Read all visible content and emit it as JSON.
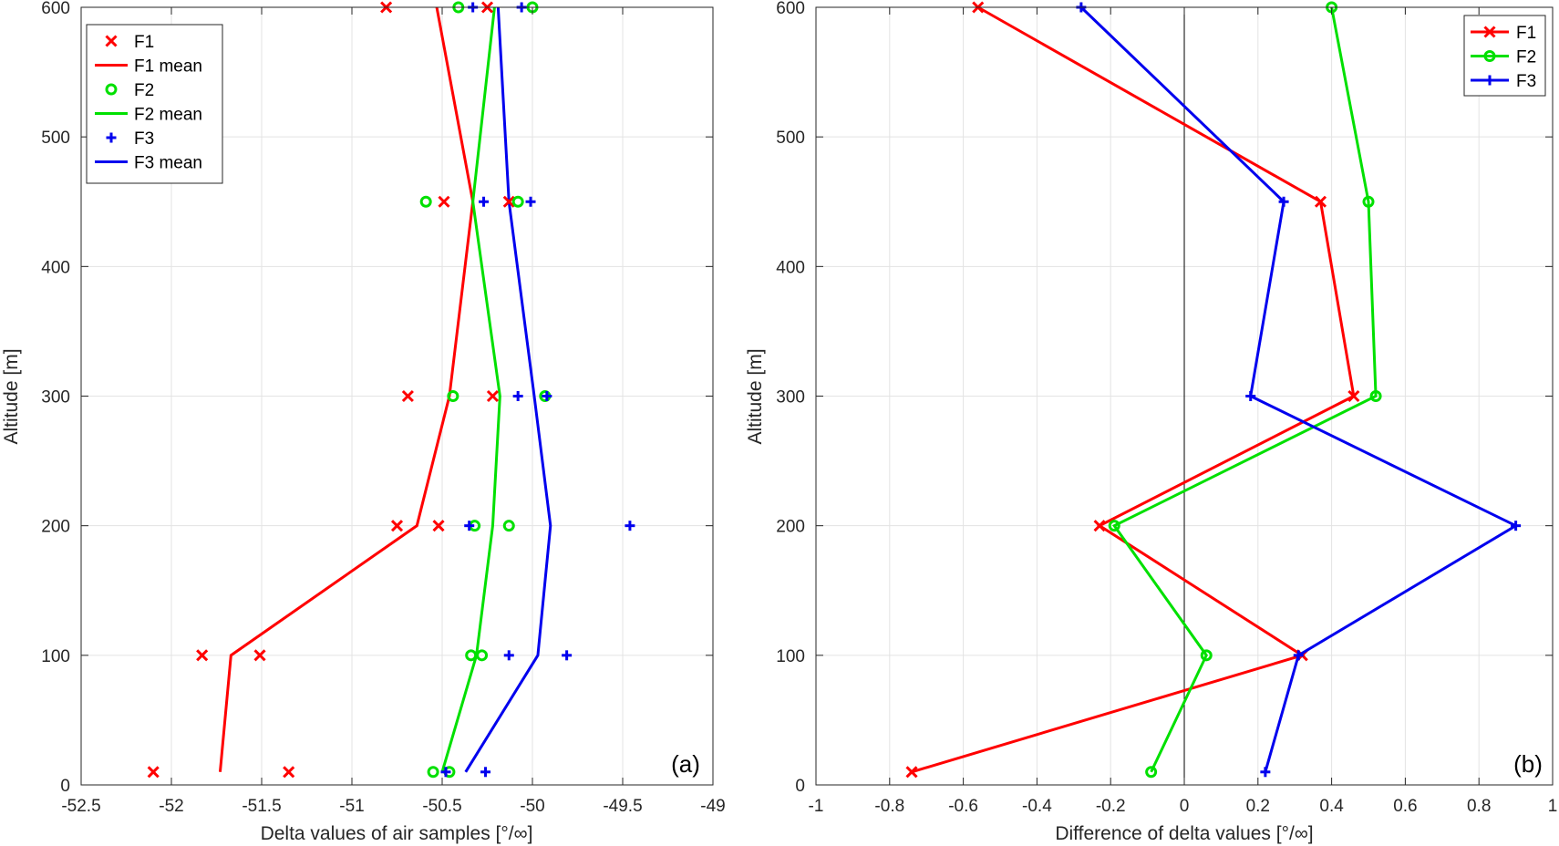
{
  "chart_data": [
    {
      "type": "scatter",
      "panel_label": "(a)",
      "xlabel": "Delta values of air samples [°/∞]",
      "ylabel": "Altitude [m]",
      "xlim": [
        -52.5,
        -49
      ],
      "ylim": [
        0,
        600
      ],
      "xticks": [
        "-52.5",
        "-52",
        "-51.5",
        "-51",
        "-50.5",
        "-50",
        "-49.5",
        "-49"
      ],
      "yticks": [
        "0",
        "100",
        "200",
        "300",
        "400",
        "500",
        "600"
      ],
      "grid": true,
      "legend_position": "top-left",
      "legend": [
        "F1",
        "F1 mean",
        "F2",
        "F2 mean",
        "F3",
        "F3 mean"
      ],
      "colors": {
        "F1": "#ff0000",
        "F2": "#00e000",
        "F3": "#0000ee"
      },
      "series": [
        {
          "name": "F1",
          "kind": "scatter",
          "marker": "x",
          "color": "#ff0000",
          "points": [
            [
              -52.1,
              10
            ],
            [
              -51.35,
              10
            ],
            [
              -51.83,
              100
            ],
            [
              -51.51,
              100
            ],
            [
              -50.75,
              200
            ],
            [
              -50.52,
              200
            ],
            [
              -50.69,
              300
            ],
            [
              -50.22,
              300
            ],
            [
              -50.49,
              450
            ],
            [
              -50.13,
              450
            ],
            [
              -50.81,
              600
            ],
            [
              -50.25,
              600
            ]
          ]
        },
        {
          "name": "F1 mean",
          "kind": "line",
          "color": "#ff0000",
          "points": [
            [
              -51.73,
              10
            ],
            [
              -51.67,
              100
            ],
            [
              -50.64,
              200
            ],
            [
              -50.46,
              300
            ],
            [
              -50.33,
              450
            ],
            [
              -50.53,
              600
            ]
          ]
        },
        {
          "name": "F2",
          "kind": "scatter",
          "marker": "o",
          "color": "#00e000",
          "points": [
            [
              -50.55,
              10
            ],
            [
              -50.46,
              10
            ],
            [
              -50.34,
              100
            ],
            [
              -50.28,
              100
            ],
            [
              -50.32,
              200
            ],
            [
              -50.13,
              200
            ],
            [
              -50.44,
              300
            ],
            [
              -49.93,
              300
            ],
            [
              -50.59,
              450
            ],
            [
              -50.08,
              450
            ],
            [
              -50.41,
              600
            ],
            [
              -50.0,
              600
            ]
          ]
        },
        {
          "name": "F2 mean",
          "kind": "line",
          "color": "#00e000",
          "points": [
            [
              -50.5,
              10
            ],
            [
              -50.31,
              100
            ],
            [
              -50.22,
              200
            ],
            [
              -50.18,
              300
            ],
            [
              -50.33,
              450
            ],
            [
              -50.21,
              600
            ]
          ]
        },
        {
          "name": "F3",
          "kind": "scatter",
          "marker": "+",
          "color": "#0000ee",
          "points": [
            [
              -50.48,
              10
            ],
            [
              -50.26,
              10
            ],
            [
              -50.13,
              100
            ],
            [
              -49.81,
              100
            ],
            [
              -50.35,
              200
            ],
            [
              -49.46,
              200
            ],
            [
              -50.08,
              300
            ],
            [
              -49.92,
              300
            ],
            [
              -50.27,
              450
            ],
            [
              -50.01,
              450
            ],
            [
              -50.33,
              600
            ],
            [
              -50.06,
              600
            ]
          ]
        },
        {
          "name": "F3 mean",
          "kind": "line",
          "color": "#0000ee",
          "points": [
            [
              -50.37,
              10
            ],
            [
              -49.97,
              100
            ],
            [
              -49.9,
              200
            ],
            [
              -49.99,
              300
            ],
            [
              -50.13,
              450
            ],
            [
              -50.19,
              600
            ]
          ]
        }
      ]
    },
    {
      "type": "line",
      "panel_label": "(b)",
      "xlabel": "Difference of delta values [°/∞]",
      "ylabel": "Altitude [m]",
      "xlim": [
        -1,
        1
      ],
      "ylim": [
        0,
        600
      ],
      "xticks": [
        "-1",
        "-0.8",
        "-0.6",
        "-0.4",
        "-0.2",
        "0",
        "0.2",
        "0.4",
        "0.6",
        "0.8",
        "1"
      ],
      "yticks": [
        "0",
        "100",
        "200",
        "300",
        "400",
        "500",
        "600"
      ],
      "grid": true,
      "zero_line": true,
      "legend_position": "top-right",
      "legend": [
        "F1",
        "F2",
        "F3"
      ],
      "series": [
        {
          "name": "F1",
          "marker": "x",
          "color": "#ff0000",
          "points": [
            [
              -0.74,
              10
            ],
            [
              0.32,
              100
            ],
            [
              -0.23,
              200
            ],
            [
              0.46,
              300
            ],
            [
              0.37,
              450
            ],
            [
              -0.56,
              600
            ]
          ]
        },
        {
          "name": "F2",
          "marker": "o",
          "color": "#00e000",
          "points": [
            [
              -0.09,
              10
            ],
            [
              0.06,
              100
            ],
            [
              -0.19,
              200
            ],
            [
              0.52,
              300
            ],
            [
              0.5,
              450
            ],
            [
              0.4,
              600
            ]
          ]
        },
        {
          "name": "F3",
          "marker": "+",
          "color": "#0000ee",
          "points": [
            [
              0.22,
              10
            ],
            [
              0.31,
              100
            ],
            [
              0.9,
              200
            ],
            [
              0.18,
              300
            ],
            [
              0.27,
              450
            ],
            [
              -0.28,
              600
            ]
          ]
        }
      ]
    }
  ]
}
